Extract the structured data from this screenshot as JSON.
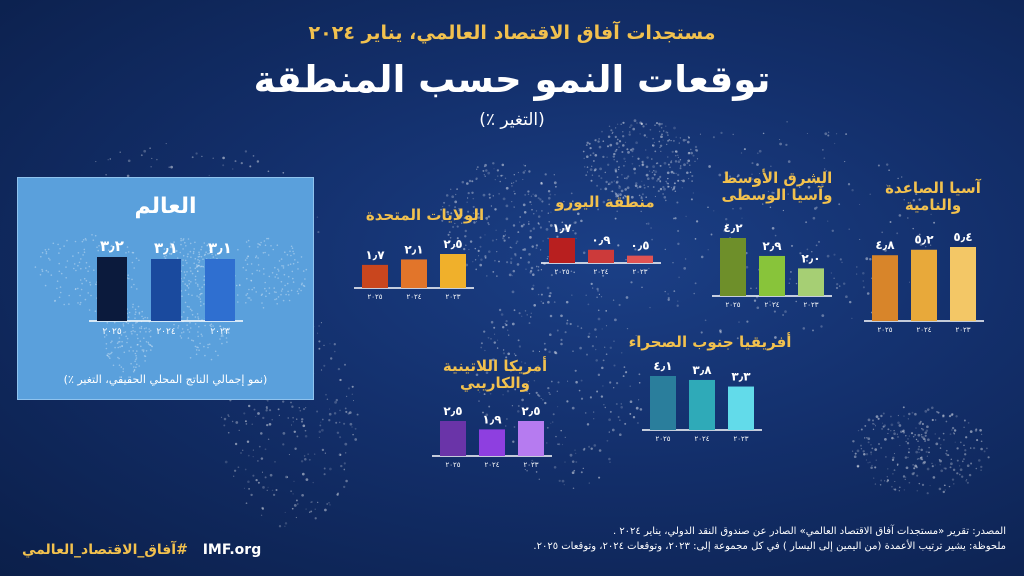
{
  "header": {
    "kicker": "مستجدات آفاق الاقتصاد العالمي، يناير ٢٠٢٤",
    "title": "توقعات النمو حسب المنطقة",
    "unit": "(التغير ٪)"
  },
  "chart_data": [
    {
      "type": "bar",
      "title": "العالم",
      "categories": [
        "٢٠٢٣",
        "٢٠٢٤",
        "٢٠٢٥"
      ],
      "values": [
        3.1,
        3.1,
        3.2
      ],
      "value_labels": [
        "٣٫١",
        "٣٫١",
        "٣٫٢"
      ],
      "colors": [
        "#2f6fd0",
        "#1a4a9e",
        "#0b1a3c"
      ],
      "footnote": "(نمو إجمالي الناتج المحلي الحقيقي، التغير ٪)"
    },
    {
      "type": "bar",
      "title": "الولايات المتحدة",
      "categories": [
        "٢٠٢٣",
        "٢٠٢٤",
        "٢٠٢٥"
      ],
      "values": [
        2.5,
        2.1,
        1.7
      ],
      "value_labels": [
        "٢٫٥",
        "٢٫١",
        "١٫٧"
      ],
      "colors": [
        "#f0b02b",
        "#e2752a",
        "#c9461e"
      ]
    },
    {
      "type": "bar",
      "title": "منطقة اليورو",
      "categories": [
        "٢٠٢٣",
        "٢٠٢٤",
        "٢٠٢٥"
      ],
      "values": [
        0.5,
        0.9,
        1.7
      ],
      "value_labels": [
        "٠٫٥",
        "٠٫٩",
        "١٫٧"
      ],
      "colors": [
        "#e05353",
        "#cc3a3a",
        "#b81f1f"
      ]
    },
    {
      "type": "bar",
      "title": "الشرق الأوسط وآسيا الوسطى",
      "categories": [
        "٢٠٢٣",
        "٢٠٢٤",
        "٢٠٢٥"
      ],
      "values": [
        2.0,
        2.9,
        4.2
      ],
      "value_labels": [
        "٢٫٠",
        "٢٫٩",
        "٤٫٢"
      ],
      "colors": [
        "#a6cf74",
        "#88c43a",
        "#6e8f2a"
      ]
    },
    {
      "type": "bar",
      "title": "آسيا الصاعدة والنامية",
      "categories": [
        "٢٠٢٣",
        "٢٠٢٤",
        "٢٠٢٥"
      ],
      "values": [
        5.4,
        5.2,
        4.8
      ],
      "value_labels": [
        "٥٫٤",
        "٥٫٢",
        "٤٫٨"
      ],
      "colors": [
        "#f3c766",
        "#e8a93a",
        "#d8852a"
      ]
    },
    {
      "type": "bar",
      "title": "أمريكا اللاتينية والكاريبي",
      "categories": [
        "٢٠٢٣",
        "٢٠٢٤",
        "٢٠٢٥"
      ],
      "values": [
        2.5,
        1.9,
        2.5
      ],
      "value_labels": [
        "٢٫٥",
        "١٫٩",
        "٢٫٥"
      ],
      "colors": [
        "#b67bf0",
        "#8e3fe0",
        "#6a34a8"
      ]
    },
    {
      "type": "bar",
      "title": "أفريقيا جنوب الصحراء",
      "categories": [
        "٢٠٢٣",
        "٢٠٢٤",
        "٢٠٢٥"
      ],
      "values": [
        3.3,
        3.8,
        4.1
      ],
      "value_labels": [
        "٣٫٣",
        "٣٫٨",
        "٤٫١"
      ],
      "colors": [
        "#62dbea",
        "#2faab8",
        "#2a7e9c"
      ]
    }
  ],
  "source": {
    "line1": "المصدر: تقرير «مستجدات آفاق الاقتصاد العالمي» الصادر عن صندوق النقد الدولي، يناير ٢٠٢٤ .",
    "line2": "ملحوظة: يشير ترتيب الأعمدة (من اليمين إلى اليسار ) في كل مجموعة إلى: ٢٠٢٣، وتوقعات ٢٠٢٤، وتوقعات ٢٠٢٥."
  },
  "brand": {
    "hashtag": "#آفاق_الاقتصاد_العالمي",
    "site": "IMF.org"
  }
}
